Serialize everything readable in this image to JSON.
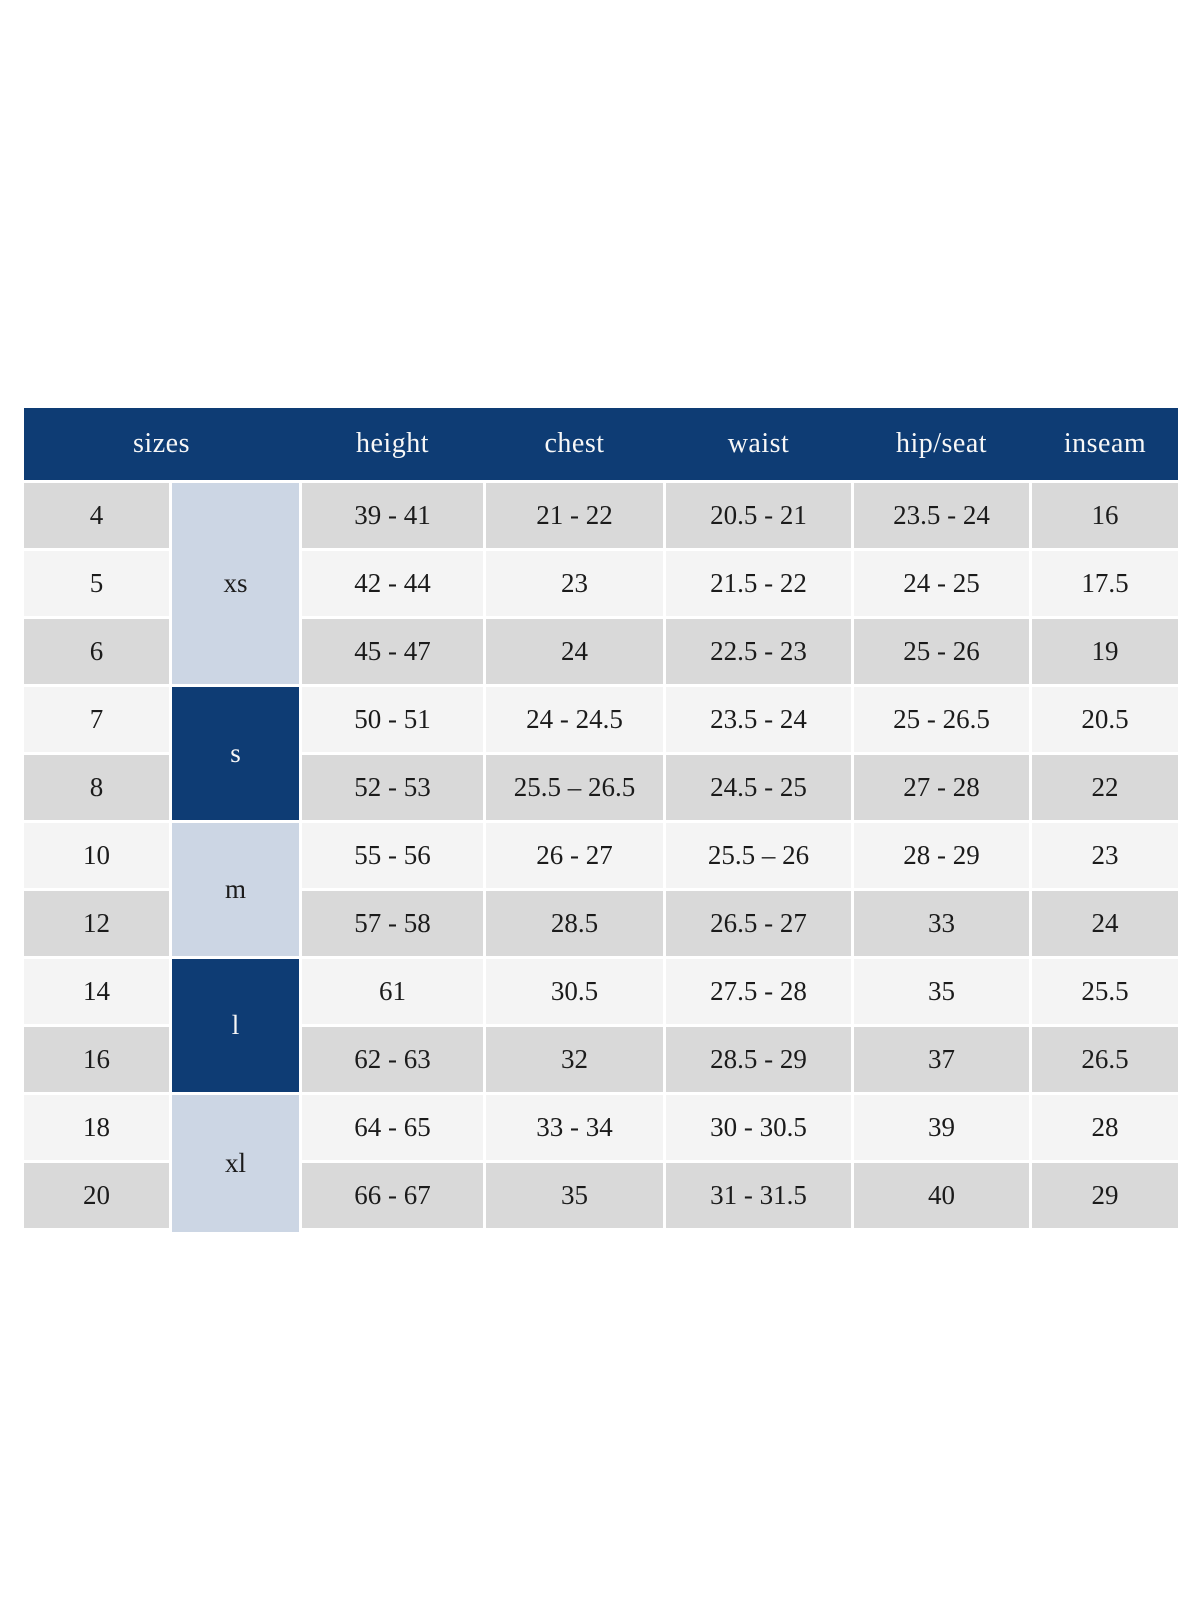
{
  "page": {
    "background": "#ffffff"
  },
  "colors": {
    "header_bg": "#0e3c74",
    "header_text": "#f7f7f7",
    "row_shade_dark": "#d9d9d9",
    "row_shade_light": "#f4f4f4",
    "size_group_light_blue": "#ccd6e4",
    "size_group_navy": "#0e3c74",
    "body_text": "#1b1b1b"
  },
  "chart_data": {
    "type": "table",
    "title": "",
    "columns": [
      "sizes",
      "height",
      "chest",
      "waist",
      "hip/seat",
      "inseam"
    ],
    "size_groups": [
      {
        "label": "xs",
        "rows": 3,
        "style": "light"
      },
      {
        "label": "s",
        "rows": 2,
        "style": "dark"
      },
      {
        "label": "m",
        "rows": 2,
        "style": "light"
      },
      {
        "label": "l",
        "rows": 2,
        "style": "dark"
      },
      {
        "label": "xl",
        "rows": 2,
        "style": "light"
      }
    ],
    "rows": [
      [
        "4",
        "39 - 41",
        "21 - 22",
        "20.5 - 21",
        "23.5 - 24",
        "16"
      ],
      [
        "5",
        "42 - 44",
        "23",
        "21.5 - 22",
        "24 - 25",
        "17.5"
      ],
      [
        "6",
        "45 - 47",
        "24",
        "22.5 - 23",
        "25 - 26",
        "19"
      ],
      [
        "7",
        "50 - 51",
        "24 - 24.5",
        "23.5 - 24",
        "25 - 26.5",
        "20.5"
      ],
      [
        "8",
        "52 - 53",
        "25.5 – 26.5",
        "24.5 - 25",
        "27 - 28",
        "22"
      ],
      [
        "10",
        "55 - 56",
        "26 - 27",
        "25.5 – 26",
        "28 - 29",
        "23"
      ],
      [
        "12",
        "57 - 58",
        "28.5",
        "26.5 - 27",
        "33",
        "24"
      ],
      [
        "14",
        "61",
        "30.5",
        "27.5 - 28",
        "35",
        "25.5"
      ],
      [
        "16",
        "62 - 63",
        "32",
        "28.5 - 29",
        "37",
        "26.5"
      ],
      [
        "18",
        "64 - 65",
        "33 - 34",
        "30 - 30.5",
        "39",
        "28"
      ],
      [
        "20",
        "66 - 67",
        "35",
        "31 - 31.5",
        "40",
        "29"
      ]
    ]
  }
}
